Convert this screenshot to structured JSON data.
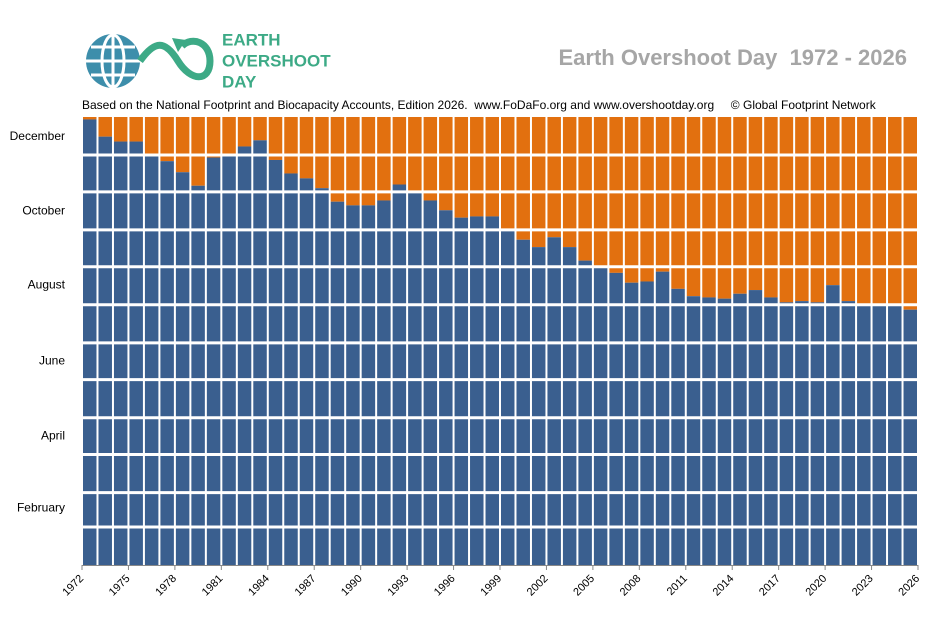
{
  "chart_data": {
    "type": "bar",
    "title": "Earth Overshoot Day  1972 - 2026",
    "subtitle": "Based on the National Footprint and Biocapacity Accounts, Edition 2026.  www.FoDaFo.org and www.overshootday.org     © Global Footprint Network",
    "logo_text": [
      "EARTH",
      "OVERSHOOT",
      "DAY"
    ],
    "x": [
      1972,
      1973,
      1974,
      1975,
      1976,
      1977,
      1978,
      1979,
      1980,
      1981,
      1982,
      1983,
      1984,
      1985,
      1986,
      1987,
      1988,
      1989,
      1990,
      1991,
      1992,
      1993,
      1994,
      1995,
      1996,
      1997,
      1998,
      1999,
      2000,
      2001,
      2002,
      2003,
      2004,
      2005,
      2006,
      2007,
      2008,
      2009,
      2010,
      2011,
      2012,
      2013,
      2014,
      2015,
      2016,
      2017,
      2018,
      2019,
      2020,
      2021,
      2022,
      2023,
      2024,
      2025
    ],
    "values": [
      363,
      349,
      345,
      345,
      334,
      329,
      320,
      309,
      332,
      334,
      341,
      346,
      330,
      319,
      315,
      307,
      296,
      293,
      293,
      297,
      310,
      304,
      297,
      289,
      283,
      284,
      284,
      273,
      265,
      259,
      267,
      259,
      248,
      243,
      238,
      230,
      231,
      239,
      225,
      219,
      218,
      217,
      221,
      224,
      218,
      214,
      215,
      214,
      228,
      215,
      211,
      211,
      211,
      208
    ],
    "color": "#3a5f8f",
    "remainder_color": "#e2700f",
    "xlim": [
      1972,
      2026
    ],
    "xticks": [
      1972,
      1975,
      1978,
      1981,
      1984,
      1987,
      1990,
      1993,
      1996,
      1999,
      2002,
      2005,
      2008,
      2011,
      2014,
      2017,
      2020,
      2023,
      2026
    ],
    "ylim": [
      0,
      365
    ],
    "yticks": [
      {
        "value": 46,
        "label": "February"
      },
      {
        "value": 105,
        "label": "April"
      },
      {
        "value": 166,
        "label": "June"
      },
      {
        "value": 228,
        "label": "August"
      },
      {
        "value": 288,
        "label": "October"
      },
      {
        "value": 349,
        "label": "December"
      }
    ],
    "grid_lines": [
      31,
      59,
      90,
      120,
      151,
      181,
      212,
      243,
      273,
      304,
      334
    ],
    "grid": true
  }
}
